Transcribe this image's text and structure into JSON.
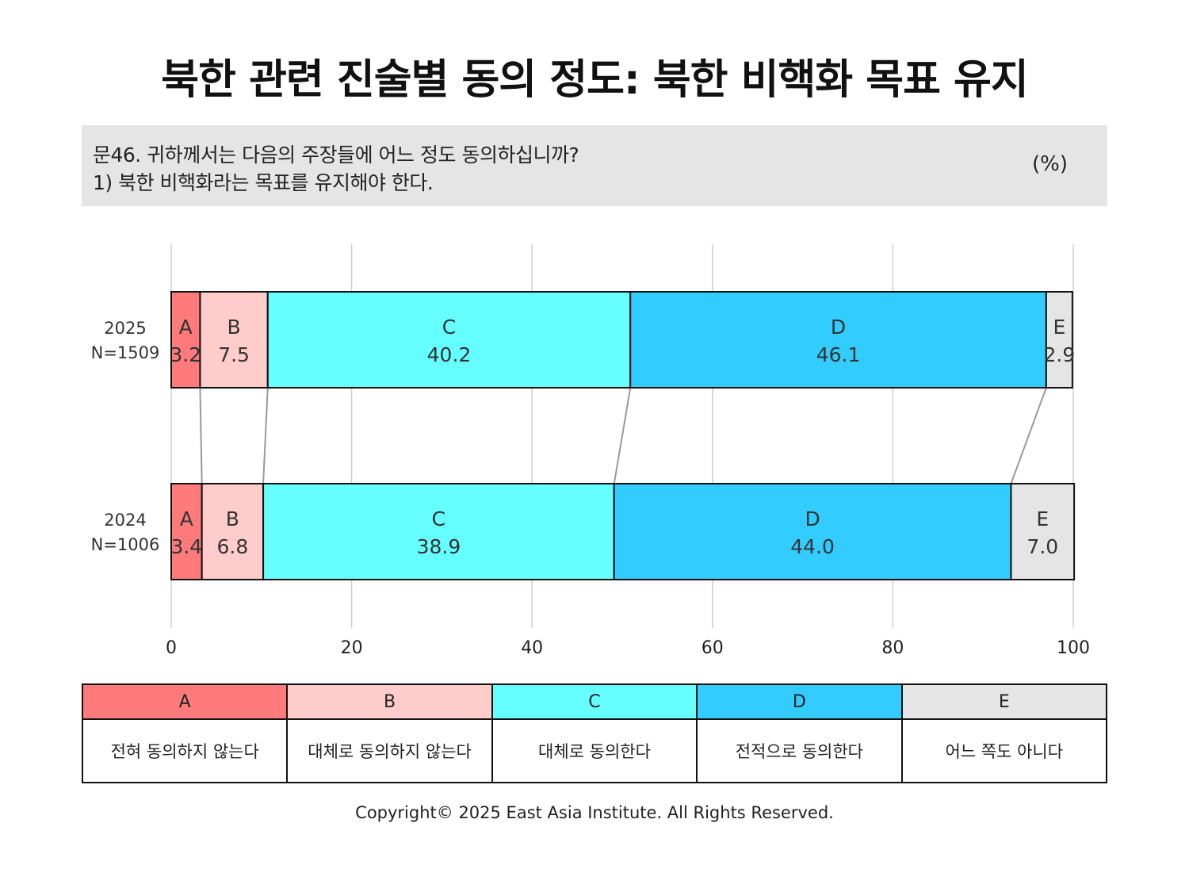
{
  "title": "북한 관련 진술별 동의 정도: 북한 비핵화 목표 유지",
  "question": {
    "line1": "문46. 귀하께서는 다음의 주장들에 어느 정도 동의하십니까?",
    "line2": "1) 북한 비핵화라는 목표를 유지해야 한다.",
    "unit": "(%)"
  },
  "chart_data": {
    "type": "bar",
    "orientation": "horizontal",
    "stacked": true,
    "categories": [
      "2025\nN=1509",
      "2024\nN=1006"
    ],
    "series": [
      {
        "name": "A",
        "values": [
          3.2,
          3.4
        ],
        "color": "#ff7b7b"
      },
      {
        "name": "B",
        "values": [
          7.5,
          6.8
        ],
        "color": "#ffcccc"
      },
      {
        "name": "C",
        "values": [
          40.2,
          38.9
        ],
        "color": "#66ffff"
      },
      {
        "name": "D",
        "values": [
          46.1,
          44.0
        ],
        "color": "#33ccff"
      },
      {
        "name": "E",
        "values": [
          2.9,
          7.0
        ],
        "color": "#e6e5e6"
      }
    ],
    "value_labels": [
      [
        "3.2",
        "7.5",
        "40.2",
        "46.1",
        "2.9"
      ],
      [
        "3.4",
        "6.8",
        "38.9",
        "44.0",
        "7.0"
      ]
    ],
    "xlim": [
      0,
      100
    ],
    "xticks": [
      "0",
      "20",
      "40",
      "60",
      "80",
      "100"
    ],
    "grid": true,
    "connector_lines": true
  },
  "legend": [
    {
      "key": "A",
      "label": "전혀 동의하지 않는다",
      "color": "#ff7b7b"
    },
    {
      "key": "B",
      "label": "대체로 동의하지 않는다",
      "color": "#ffcccc"
    },
    {
      "key": "C",
      "label": "대체로 동의한다",
      "color": "#66ffff"
    },
    {
      "key": "D",
      "label": "전적으로 동의한다",
      "color": "#33ccff"
    },
    {
      "key": "E",
      "label": "어느 쪽도 아니다",
      "color": "#e6e5e6"
    }
  ],
  "copyright": "Copyright© 2025 East Asia Institute. All Rights Reserved."
}
